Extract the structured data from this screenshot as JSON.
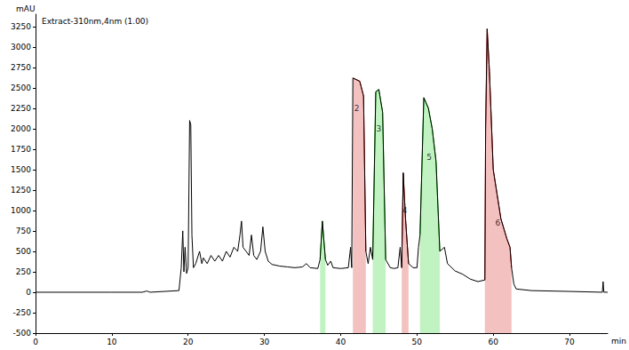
{
  "chart_data": {
    "type": "line",
    "title": "Extract-310nm,4nm (1.00)",
    "x_label": "min",
    "y_label": "mAU",
    "color": "#000000",
    "grid": false,
    "xlim": [
      0,
      75
    ],
    "ylim": [
      -500,
      3400
    ],
    "xticks": [
      0,
      10,
      20,
      30,
      40,
      50,
      60,
      70
    ],
    "yticks": [
      -500,
      -250,
      0,
      250,
      500,
      750,
      1000,
      1250,
      1500,
      1750,
      2000,
      2250,
      2500,
      2750,
      3000,
      3250
    ],
    "x": [
      0,
      10,
      14,
      14.6,
      15,
      18.8,
      19.1,
      19.3,
      19.45,
      19.6,
      19.8,
      20.0,
      20.2,
      20.35,
      20.5,
      20.7,
      21,
      21.5,
      21.8,
      22,
      22.5,
      23,
      23.5,
      24,
      24.5,
      25,
      25.5,
      26,
      26.5,
      26.8,
      27,
      27.2,
      27.6,
      28,
      28.3,
      28.6,
      29,
      29.5,
      29.8,
      30.1,
      30.5,
      31,
      32,
      33,
      34,
      35,
      35.5,
      36,
      37,
      37.3,
      37.6,
      38.0,
      38.3,
      38.7,
      39,
      40,
      41,
      41.3,
      41.45,
      41.6,
      42.5,
      43.0,
      43.3,
      43.6,
      43.9,
      44.2,
      44.6,
      45.0,
      45.5,
      45.9,
      46.5,
      47,
      47.5,
      47.8,
      48.0,
      48.2,
      48.5,
      48.9,
      49.5,
      50.0,
      50.2,
      50.4,
      50.9,
      51.5,
      52,
      52.5,
      53.0,
      53.6,
      54,
      55,
      56,
      57,
      58,
      58.9,
      59.0,
      59.2,
      59.5,
      60,
      61,
      61.8,
      62.2,
      62.4,
      62.7,
      63,
      65,
      70,
      74.3,
      74.4,
      74.5,
      75
    ],
    "values": [
      0,
      0,
      0,
      15,
      0,
      20,
      300,
      750,
      250,
      550,
      230,
      300,
      2100,
      2050,
      700,
      300,
      350,
      500,
      350,
      420,
      350,
      450,
      380,
      450,
      380,
      500,
      430,
      550,
      500,
      700,
      870,
      550,
      500,
      450,
      700,
      450,
      400,
      500,
      800,
      500,
      380,
      340,
      320,
      310,
      300,
      310,
      350,
      300,
      290,
      400,
      870,
      400,
      330,
      380,
      300,
      290,
      300,
      550,
      300,
      2620,
      2580,
      2400,
      500,
      350,
      550,
      400,
      2450,
      2480,
      2200,
      400,
      300,
      290,
      300,
      550,
      300,
      1460,
      900,
      350,
      300,
      300,
      550,
      700,
      2380,
      2250,
      2000,
      1600,
      500,
      550,
      350,
      260,
      220,
      160,
      130,
      150,
      2000,
      3220,
      2700,
      1500,
      900,
      650,
      550,
      300,
      100,
      40,
      20,
      10,
      0,
      130,
      0,
      0
    ],
    "peaks": [
      {
        "start": 37.3,
        "end": 38.0,
        "color": "#00c800"
      },
      {
        "label": "2",
        "start": 41.6,
        "end": 43.3,
        "color": "#d00000",
        "label_x": 42.1,
        "label_y": 2250
      },
      {
        "label": "3",
        "start": 44.2,
        "end": 45.9,
        "color": "#00c800",
        "label_x": 45.0,
        "label_y": 2000
      },
      {
        "label": "4",
        "start": 48.0,
        "end": 48.9,
        "color": "#d00000",
        "label_x": 48.4,
        "label_y": 1000
      },
      {
        "label": "5",
        "start": 50.4,
        "end": 53.0,
        "color": "#00c800",
        "label_x": 51.6,
        "label_y": 1650
      },
      {
        "label": "6",
        "start": 58.9,
        "end": 62.4,
        "color": "#d00000",
        "label_x": 60.6,
        "label_y": 850
      }
    ]
  }
}
